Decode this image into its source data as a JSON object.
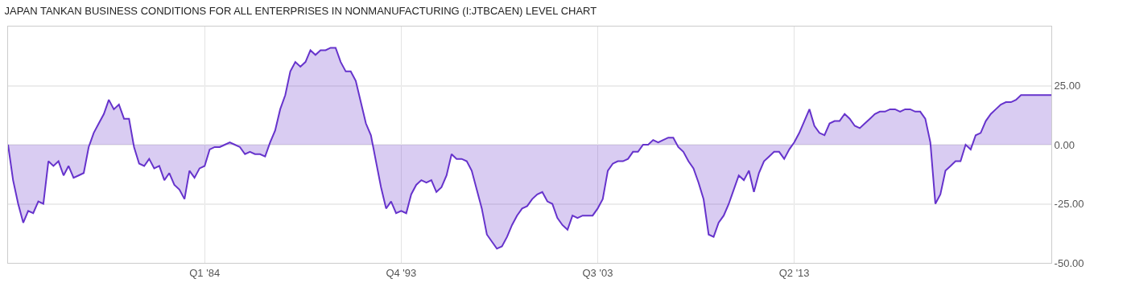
{
  "chart_data": {
    "type": "area",
    "title": "JAPAN TANKAN BUSINESS CONDITIONS FOR ALL ENTERPRISES IN NONMANUFACTURING (I:JTBCAEN) LEVEL CHART",
    "x": [
      "1974-04",
      "1974-07",
      "1974-10",
      "1975-01",
      "1975-04",
      "1975-07",
      "1975-10",
      "1976-01",
      "1976-04",
      "1976-07",
      "1976-10",
      "1977-01",
      "1977-04",
      "1977-07",
      "1977-10",
      "1978-01",
      "1978-04",
      "1978-07",
      "1978-10",
      "1979-01",
      "1979-04",
      "1979-07",
      "1979-10",
      "1980-01",
      "1980-04",
      "1980-07",
      "1980-10",
      "1981-01",
      "1981-04",
      "1981-07",
      "1981-10",
      "1982-01",
      "1982-04",
      "1982-07",
      "1982-10",
      "1983-01",
      "1983-04",
      "1983-07",
      "1983-10",
      "1984-01",
      "1984-04",
      "1984-07",
      "1984-10",
      "1985-01",
      "1985-04",
      "1985-07",
      "1985-10",
      "1986-01",
      "1986-04",
      "1986-07",
      "1986-10",
      "1987-01",
      "1987-04",
      "1987-07",
      "1987-10",
      "1988-01",
      "1988-04",
      "1988-07",
      "1988-10",
      "1989-01",
      "1989-04",
      "1989-07",
      "1989-10",
      "1990-01",
      "1990-04",
      "1990-07",
      "1990-10",
      "1991-01",
      "1991-04",
      "1991-07",
      "1991-10",
      "1992-01",
      "1992-04",
      "1992-07",
      "1992-10",
      "1993-01",
      "1993-04",
      "1993-07",
      "1993-10",
      "1994-01",
      "1994-04",
      "1994-07",
      "1994-10",
      "1995-01",
      "1995-04",
      "1995-07",
      "1995-10",
      "1996-01",
      "1996-04",
      "1996-07",
      "1996-10",
      "1997-01",
      "1997-04",
      "1997-07",
      "1997-10",
      "1998-01",
      "1998-04",
      "1998-07",
      "1998-10",
      "1999-01",
      "1999-04",
      "1999-07",
      "1999-10",
      "2000-01",
      "2000-04",
      "2000-07",
      "2000-10",
      "2001-01",
      "2001-04",
      "2001-07",
      "2001-10",
      "2002-01",
      "2002-04",
      "2002-07",
      "2002-10",
      "2003-01",
      "2003-04",
      "2003-07",
      "2003-10",
      "2004-01",
      "2004-04",
      "2004-07",
      "2004-10",
      "2005-01",
      "2005-04",
      "2005-07",
      "2005-10",
      "2006-01",
      "2006-04",
      "2006-07",
      "2006-10",
      "2007-01",
      "2007-04",
      "2007-07",
      "2007-10",
      "2008-01",
      "2008-04",
      "2008-07",
      "2008-10",
      "2009-01",
      "2009-04",
      "2009-07",
      "2009-10",
      "2010-01",
      "2010-04",
      "2010-07",
      "2010-10",
      "2011-01",
      "2011-04",
      "2011-07",
      "2011-10",
      "2012-01",
      "2012-04",
      "2012-07",
      "2012-10",
      "2013-01",
      "2013-04",
      "2013-07",
      "2013-10",
      "2014-01",
      "2014-04",
      "2014-07",
      "2014-10",
      "2015-01",
      "2015-04",
      "2015-07",
      "2015-10",
      "2016-01",
      "2016-04",
      "2016-07",
      "2016-10",
      "2017-01",
      "2017-04",
      "2017-07",
      "2017-10",
      "2018-01",
      "2018-04",
      "2018-07",
      "2018-10",
      "2019-01",
      "2019-04",
      "2019-07",
      "2019-10",
      "2020-01",
      "2020-04",
      "2020-07",
      "2020-10",
      "2021-01",
      "2021-04",
      "2021-07",
      "2021-10",
      "2022-01",
      "2022-04",
      "2022-07",
      "2022-10",
      "2023-01",
      "2023-04",
      "2023-07",
      "2023-10",
      "2024-01",
      "2024-04",
      "2024-07",
      "2024-10",
      "2025-01",
      "2025-04",
      "2025-07",
      "2025-10",
      "2026-01"
    ],
    "series": [
      {
        "color": "#6633cc",
        "values": [
          0,
          -15,
          -25,
          -33,
          -28,
          -29,
          -24,
          -25,
          -7,
          -9,
          -7,
          -13,
          -9,
          -14,
          -13,
          -12,
          -1,
          5,
          9,
          13,
          19,
          15,
          17,
          11,
          11,
          -1,
          -8,
          -9,
          -6,
          -10,
          -9,
          -15,
          -12,
          -17,
          -19,
          -23,
          -11,
          -14,
          -10,
          -9,
          -2,
          -1,
          -1,
          0,
          1,
          0,
          -1,
          -4,
          -3,
          -4,
          -4,
          -5,
          1,
          6,
          15,
          21,
          31,
          35,
          33,
          35,
          40,
          38,
          40,
          40,
          41,
          41,
          35,
          31,
          31,
          27,
          18,
          9,
          4,
          -7,
          -18,
          -27,
          -24,
          -29,
          -28,
          -29,
          -21,
          -17,
          -15,
          -16,
          -15,
          -20,
          -18,
          -13,
          -4,
          -6,
          -6,
          -7,
          -11,
          -19,
          -27,
          -38,
          -41,
          -44,
          -43,
          -39,
          -34,
          -30,
          -27,
          -26,
          -23,
          -21,
          -20,
          -24,
          -25,
          -31,
          -34,
          -36,
          -30,
          -31,
          -30,
          -30,
          -30,
          -27,
          -23,
          -11,
          -8,
          -7,
          -7,
          -6,
          -3,
          -3,
          0,
          0,
          2,
          1,
          2,
          3,
          3,
          -1,
          -3,
          -7,
          -10,
          -16,
          -23,
          -38,
          -39,
          -33,
          -30,
          -25,
          -19,
          -13,
          -15,
          -11,
          -20,
          -12,
          -7,
          -5,
          -3,
          -3,
          -6,
          -2,
          1,
          5,
          10,
          15,
          8,
          5,
          4,
          9,
          10,
          10,
          13,
          11,
          8,
          7,
          9,
          11,
          13,
          14,
          14,
          15,
          15,
          14,
          15,
          15,
          14,
          14,
          11,
          1,
          -25,
          -21,
          -11,
          -9,
          -7,
          -7,
          0,
          -2,
          4,
          5,
          10,
          13,
          15,
          17,
          18,
          18,
          19,
          21,
          21,
          21,
          21,
          21,
          21,
          21
        ]
      }
    ],
    "xlim": [
      "1974-04",
      "2026-01"
    ],
    "xticks": [
      {
        "value": "1984-01",
        "label": "Q1 '84"
      },
      {
        "value": "1993-10",
        "label": "Q4 '93"
      },
      {
        "value": "2003-07",
        "label": "Q3 '03"
      },
      {
        "value": "2013-04",
        "label": "Q2 '13"
      }
    ],
    "ylim": [
      -50,
      50
    ],
    "yticks": [
      {
        "value": -50,
        "label": "-50.00"
      },
      {
        "value": -25,
        "label": "-25.00"
      },
      {
        "value": 0,
        "label": "0.00"
      },
      {
        "value": 25,
        "label": "25.00"
      }
    ],
    "grid": true,
    "marker": "none",
    "line_style": "solid"
  }
}
